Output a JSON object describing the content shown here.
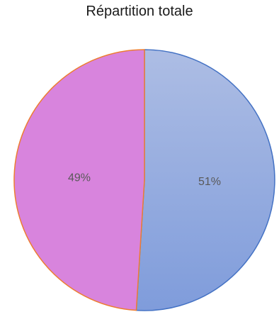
{
  "chart_data": {
    "type": "pie",
    "title": "Répartition totale",
    "slices": [
      {
        "label": "51%",
        "value": 51,
        "color_top": "#adbde4",
        "color_bottom": "#7f9cdb",
        "stroke": "#4472c4"
      },
      {
        "label": "49%",
        "value": 49,
        "color_top": "#d884dd",
        "color_bottom": "#d884dd",
        "stroke": "#ed7d31"
      }
    ]
  }
}
